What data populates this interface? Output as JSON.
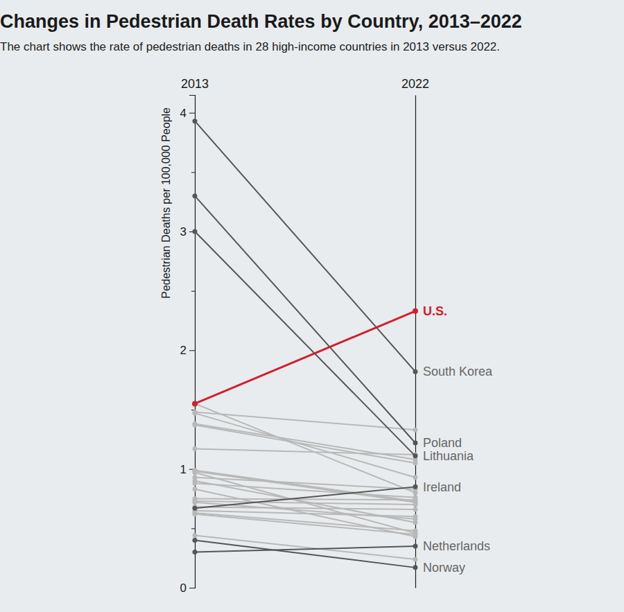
{
  "chart_data": {
    "type": "slope",
    "title": "Changes in Pedestrian Death Rates by Country, 2013–2022",
    "subtitle": "The chart shows the rate of pedestrian deaths in 28 high-income countries in 2013 versus 2022.",
    "y_label": "Pedestrian Deaths per 100,000 People",
    "categories": [
      "2013",
      "2022"
    ],
    "ylim": [
      0,
      4.15
    ],
    "yticks": [
      0,
      {
        "value": 0.5,
        "label": null
      },
      1,
      {
        "value": 1.5,
        "label": null
      },
      2,
      {
        "value": 2.5,
        "label": null
      },
      3,
      {
        "value": 3.5,
        "label": null
      },
      4
    ],
    "marker": "circle",
    "series": [
      {
        "name": null,
        "color": "#b8b8b8",
        "values": [
          1.55,
          0.8
        ]
      },
      {
        "name": null,
        "color": "#b8b8b8",
        "values": [
          1.48,
          1.33
        ]
      },
      {
        "name": null,
        "color": "#b8b8b8",
        "values": [
          1.47,
          0.93
        ]
      },
      {
        "name": null,
        "color": "#b8b8b8",
        "values": [
          1.38,
          1.08
        ]
      },
      {
        "name": null,
        "color": "#b8b8b8",
        "values": [
          1.37,
          1.05
        ]
      },
      {
        "name": null,
        "color": "#b8b8b8",
        "values": [
          1.17,
          1.12
        ]
      },
      {
        "name": null,
        "color": "#b8b8b8",
        "values": [
          0.98,
          0.72
        ]
      },
      {
        "name": null,
        "color": "#b8b8b8",
        "values": [
          0.97,
          0.46
        ]
      },
      {
        "name": null,
        "color": "#b8b8b8",
        "values": [
          0.93,
          0.83
        ]
      },
      {
        "name": null,
        "color": "#b8b8b8",
        "values": [
          0.88,
          0.76
        ]
      },
      {
        "name": null,
        "color": "#b8b8b8",
        "values": [
          0.83,
          0.43
        ]
      },
      {
        "name": null,
        "color": "#b8b8b8",
        "values": [
          0.75,
          0.74
        ]
      },
      {
        "name": null,
        "color": "#b8b8b8",
        "values": [
          0.73,
          0.7
        ]
      },
      {
        "name": null,
        "color": "#b8b8b8",
        "values": [
          0.72,
          0.58
        ]
      },
      {
        "name": null,
        "color": "#b8b8b8",
        "values": [
          0.68,
          0.66
        ]
      },
      {
        "name": null,
        "color": "#b8b8b8",
        "values": [
          0.65,
          0.6
        ]
      },
      {
        "name": null,
        "color": "#b8b8b8",
        "values": [
          0.63,
          0.48
        ]
      },
      {
        "name": null,
        "color": "#b8b8b8",
        "values": [
          0.62,
          0.45
        ]
      },
      {
        "name": null,
        "color": "#b8b8b8",
        "values": [
          0.44,
          0.24
        ]
      },
      {
        "name": null,
        "color": "#b8b8b8",
        "values": [
          0.9,
          0.55
        ]
      },
      {
        "name": null,
        "color": "#b8b8b8",
        "values": [
          0.99,
          0.73
        ]
      },
      {
        "name": "South Korea",
        "color": "#555555",
        "values": [
          3.93,
          1.82
        ]
      },
      {
        "name": "Poland",
        "color": "#555555",
        "values": [
          3.3,
          1.22
        ]
      },
      {
        "name": "Lithuania",
        "color": "#555555",
        "values": [
          3.0,
          1.11
        ]
      },
      {
        "name": "Ireland",
        "color": "#555555",
        "values": [
          0.67,
          0.85
        ]
      },
      {
        "name": "Netherlands",
        "color": "#555555",
        "values": [
          0.3,
          0.35
        ]
      },
      {
        "name": "Norway",
        "color": "#555555",
        "values": [
          0.4,
          0.17
        ]
      },
      {
        "name": "U.S.",
        "color": "#d0202e",
        "values": [
          1.55,
          2.33
        ]
      }
    ]
  }
}
